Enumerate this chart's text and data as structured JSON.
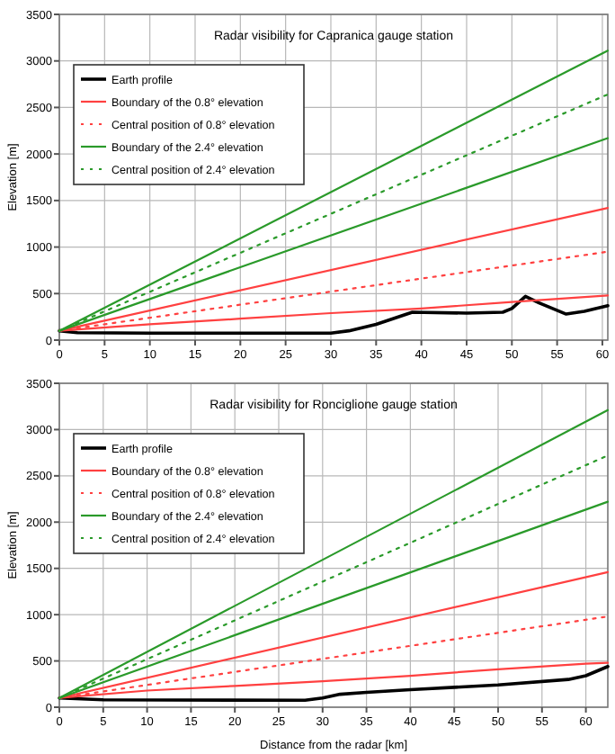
{
  "chart_data": [
    {
      "type": "line",
      "title": "Radar visibility for Capranica gauge station",
      "ylabel": "Elevation [m]",
      "xlim": [
        0,
        60.6
      ],
      "xticks": [
        0,
        5,
        10,
        15,
        20,
        25,
        30,
        35,
        40,
        45,
        50,
        55,
        60
      ],
      "ylim": [
        0,
        3500
      ],
      "yticks": [
        0,
        500,
        1000,
        1500,
        2000,
        2500,
        3000,
        3500
      ],
      "grid": true,
      "legend": "top left",
      "series": [
        {
          "name": "Earth profile",
          "color": "#000000",
          "line_style": "solid",
          "x": [
            0,
            2,
            10,
            20,
            30,
            32,
            35,
            39,
            45,
            49,
            50,
            51.5,
            53,
            56,
            58,
            60.6
          ],
          "values": [
            100,
            80,
            75,
            75,
            75,
            100,
            170,
            300,
            290,
            300,
            340,
            470,
            400,
            280,
            310,
            370
          ]
        },
        {
          "name": "Boundary of the 0.8° elevation",
          "color": "#ff4040",
          "line_style": "solid",
          "x": [
            0,
            10,
            20,
            30,
            40,
            50,
            60.6
          ],
          "values": [
            100,
            170,
            230,
            290,
            340,
            410,
            480
          ]
        },
        {
          "color": "#ff4040",
          "line_style": "solid",
          "x": [
            0,
            60.6
          ],
          "values": [
            100,
            1420
          ]
        },
        {
          "name": "Central position of 0.8° elevation",
          "color": "#ff4040",
          "line_style": "dotted",
          "x": [
            0,
            60.6
          ],
          "values": [
            100,
            950
          ]
        },
        {
          "name": "Boundary of the 2.4° elevation",
          "color": "#2a9a2a",
          "line_style": "solid",
          "x": [
            0,
            60.6
          ],
          "values": [
            100,
            2170
          ]
        },
        {
          "color": "#2a9a2a",
          "line_style": "solid",
          "x": [
            0,
            60.6
          ],
          "values": [
            100,
            3110
          ]
        },
        {
          "name": "Central position of 2.4° elevation",
          "color": "#2a9a2a",
          "line_style": "dotted",
          "x": [
            0,
            60.6
          ],
          "values": [
            100,
            2640
          ]
        }
      ]
    },
    {
      "type": "line",
      "title": "Radar visibility for Ronciglione gauge station",
      "xlabel": "Distance from the radar [km]",
      "ylabel": "Elevation [m]",
      "xlim": [
        0,
        62.5
      ],
      "xticks": [
        0,
        5,
        10,
        15,
        20,
        25,
        30,
        35,
        40,
        45,
        50,
        55,
        60
      ],
      "ylim": [
        0,
        3500
      ],
      "yticks": [
        0,
        500,
        1000,
        1500,
        2000,
        2500,
        3000,
        3500
      ],
      "grid": true,
      "legend": "top left",
      "series": [
        {
          "name": "Earth profile",
          "color": "#000000",
          "line_style": "solid",
          "x": [
            0,
            5,
            28,
            30,
            32,
            35,
            40,
            50,
            58,
            60,
            62.5
          ],
          "values": [
            100,
            80,
            75,
            100,
            140,
            160,
            190,
            240,
            300,
            340,
            440
          ]
        },
        {
          "name": "Boundary of the 0.8° elevation",
          "color": "#ff4040",
          "line_style": "solid",
          "x": [
            0,
            10,
            20,
            30,
            40,
            50,
            60,
            62.5
          ],
          "values": [
            100,
            180,
            230,
            280,
            340,
            410,
            470,
            480
          ]
        },
        {
          "color": "#ff4040",
          "line_style": "solid",
          "x": [
            0,
            62.5
          ],
          "values": [
            100,
            1460
          ]
        },
        {
          "name": "Central position of 0.8° elevation",
          "color": "#ff4040",
          "line_style": "dotted",
          "x": [
            0,
            62.5
          ],
          "values": [
            100,
            980
          ]
        },
        {
          "name": "Boundary of the 2.4° elevation",
          "color": "#2a9a2a",
          "line_style": "solid",
          "x": [
            0,
            62.5
          ],
          "values": [
            100,
            2220
          ]
        },
        {
          "color": "#2a9a2a",
          "line_style": "solid",
          "x": [
            0,
            62.5
          ],
          "values": [
            100,
            3210
          ]
        },
        {
          "name": "Central position of 2.4° elevation",
          "color": "#2a9a2a",
          "line_style": "dotted",
          "x": [
            0,
            62.5
          ],
          "values": [
            100,
            2720
          ]
        }
      ]
    }
  ]
}
